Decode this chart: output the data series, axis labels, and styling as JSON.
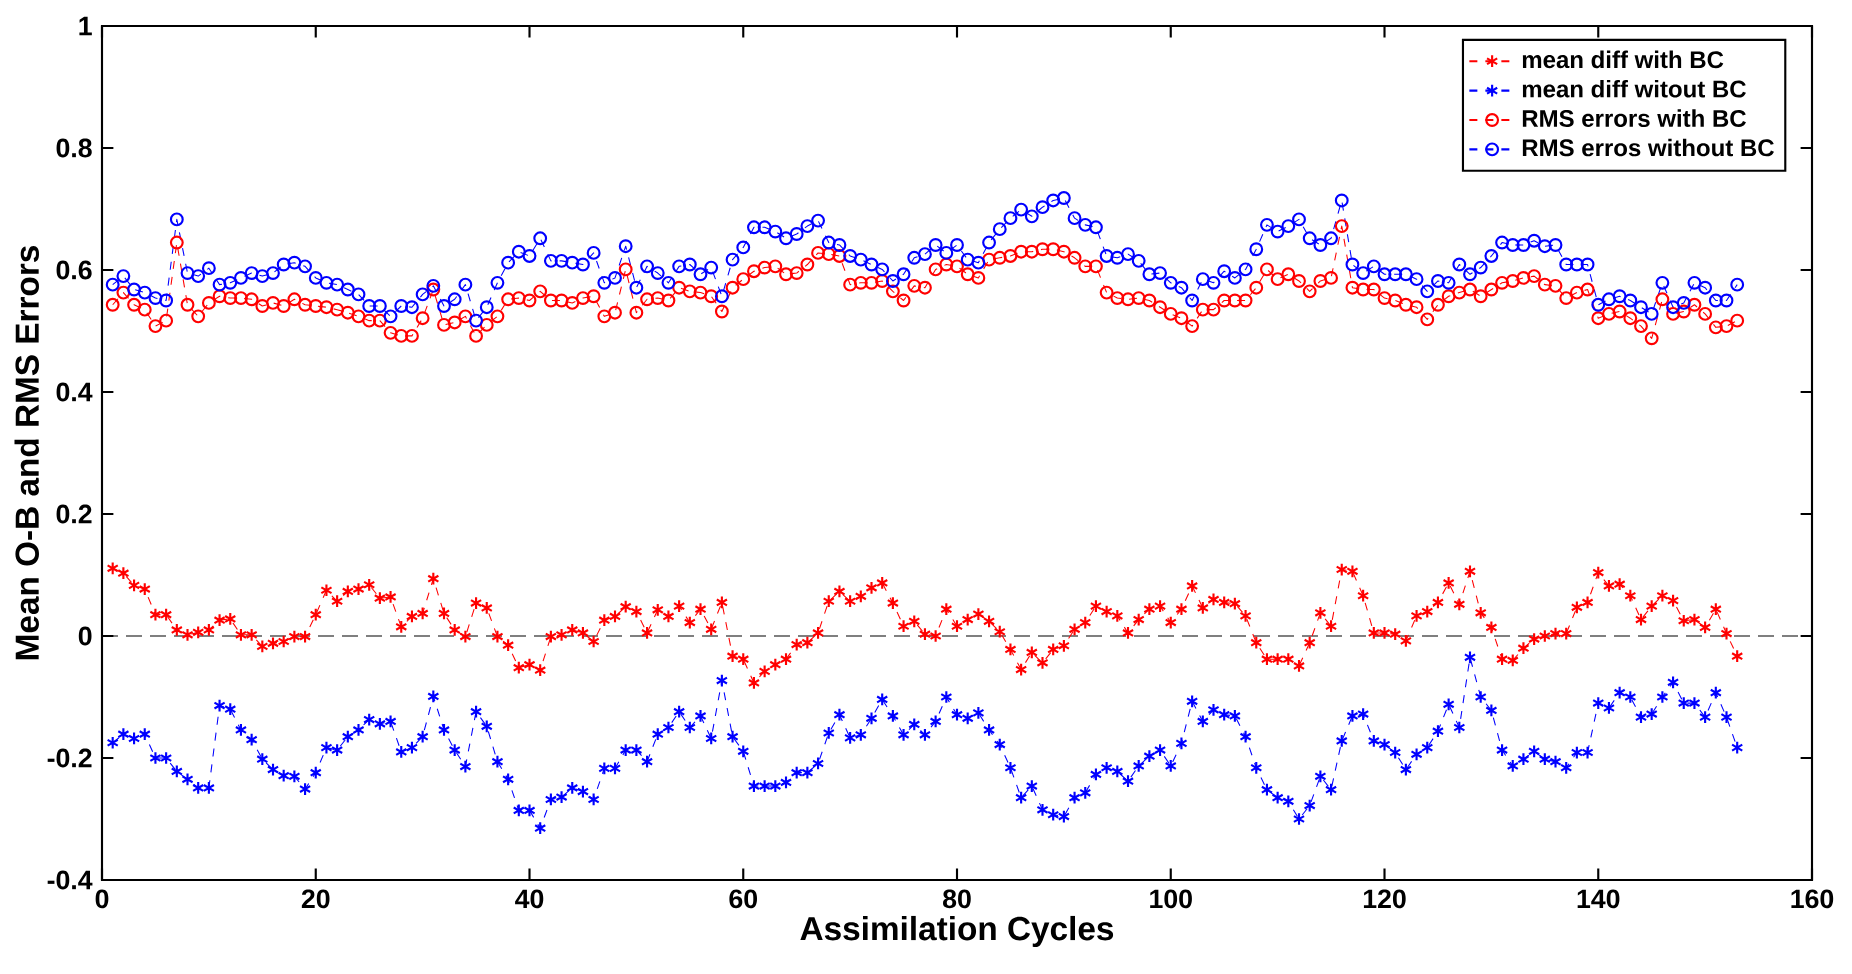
{
  "chart_data": {
    "type": "line",
    "xlabel": "Assimilation Cycles",
    "ylabel": "Mean O-B and RMS Errors",
    "xlim": [
      0,
      160
    ],
    "xticks": [
      0,
      20,
      40,
      60,
      80,
      100,
      120,
      140,
      160
    ],
    "ylim": [
      -0.4,
      1
    ],
    "yticks": [
      -0.4,
      -0.2,
      0,
      0.2,
      0.4,
      0.6,
      0.8,
      1
    ],
    "legend": "top right",
    "line_style": "dashed",
    "ref_lines": [
      {
        "axis": "y",
        "value": 0,
        "color": "#000000",
        "line_style": "dashed"
      }
    ],
    "x": [
      1,
      2,
      3,
      4,
      5,
      6,
      7,
      8,
      9,
      10,
      11,
      12,
      13,
      14,
      15,
      16,
      17,
      18,
      19,
      20,
      21,
      22,
      23,
      24,
      25,
      26,
      27,
      28,
      29,
      30,
      31,
      32,
      33,
      34,
      35,
      36,
      37,
      38,
      39,
      40,
      41,
      42,
      43,
      44,
      45,
      46,
      47,
      48,
      49,
      50,
      51,
      52,
      53,
      54,
      55,
      56,
      57,
      58,
      59,
      60,
      61,
      62,
      63,
      64,
      65,
      66,
      67,
      68,
      69,
      70,
      71,
      72,
      73,
      74,
      75,
      76,
      77,
      78,
      79,
      80,
      81,
      82,
      83,
      84,
      85,
      86,
      87,
      88,
      89,
      90,
      91,
      92,
      93,
      94,
      95,
      96,
      97,
      98,
      99,
      100,
      101,
      102,
      103,
      104,
      105,
      106,
      107,
      108,
      109,
      110,
      111,
      112,
      113,
      114,
      115,
      116,
      117,
      118,
      119,
      120,
      121,
      122,
      123,
      124,
      125,
      126,
      127,
      128,
      129,
      130,
      131,
      132,
      133,
      134,
      135,
      136,
      137,
      138,
      139,
      140,
      141,
      142,
      143,
      144,
      145,
      146,
      147,
      148,
      149,
      150,
      151,
      152,
      153
    ],
    "series": [
      {
        "name": "mean diff with BC",
        "color": "#ff0000",
        "marker": "cross",
        "values": [
          0.111,
          0.103,
          0.083,
          0.077,
          0.035,
          0.035,
          0.01,
          0.002,
          0.006,
          0.01,
          0.026,
          0.028,
          0.002,
          0.002,
          -0.017,
          -0.012,
          -0.009,
          -0.001,
          -0.001,
          0.035,
          0.075,
          0.057,
          0.073,
          0.077,
          0.084,
          0.062,
          0.064,
          0.015,
          0.032,
          0.037,
          0.094,
          0.037,
          0.01,
          -0.001,
          0.054,
          0.046,
          -0.001,
          -0.015,
          -0.052,
          -0.047,
          -0.056,
          -0.001,
          0.002,
          0.01,
          0.005,
          -0.009,
          0.026,
          0.032,
          0.048,
          0.04,
          0.005,
          0.043,
          0.032,
          0.049,
          0.022,
          0.044,
          0.011,
          0.055,
          -0.033,
          -0.038,
          -0.077,
          -0.058,
          -0.047,
          -0.038,
          -0.014,
          -0.011,
          0.005,
          0.057,
          0.073,
          0.057,
          0.065,
          0.079,
          0.087,
          0.054,
          0.016,
          0.024,
          0.003,
          0,
          0.044,
          0.016,
          0.027,
          0.036,
          0.024,
          0.007,
          -0.022,
          -0.055,
          -0.027,
          -0.044,
          -0.022,
          -0.016,
          0.011,
          0.022,
          0.049,
          0.04,
          0.033,
          0.005,
          0.027,
          0.044,
          0.049,
          0.022,
          0.044,
          0.082,
          0.046,
          0.06,
          0.055,
          0.053,
          0.033,
          -0.011,
          -0.038,
          -0.038,
          -0.038,
          -0.049,
          -0.011,
          0.038,
          0.016,
          0.109,
          0.106,
          0.066,
          0.005,
          0.005,
          0.003,
          -0.008,
          0.033,
          0.04,
          0.055,
          0.087,
          0.052,
          0.106,
          0.038,
          0.014,
          -0.038,
          -0.04,
          -0.02,
          -0.005,
          0,
          0.004,
          0.004,
          0.047,
          0.055,
          0.104,
          0.082,
          0.085,
          0.066,
          0.027,
          0.049,
          0.066,
          0.058,
          0.025,
          0.027,
          0.014,
          0.044,
          0.004,
          -0.033
        ]
      },
      {
        "name": "mean diff witout BC",
        "color": "#0000ff",
        "marker": "cross",
        "values": [
          -0.175,
          -0.161,
          -0.168,
          -0.161,
          -0.2,
          -0.2,
          -0.222,
          -0.235,
          -0.249,
          -0.249,
          -0.114,
          -0.12,
          -0.154,
          -0.17,
          -0.202,
          -0.219,
          -0.229,
          -0.23,
          -0.251,
          -0.224,
          -0.183,
          -0.187,
          -0.165,
          -0.154,
          -0.137,
          -0.144,
          -0.14,
          -0.19,
          -0.183,
          -0.165,
          -0.099,
          -0.154,
          -0.187,
          -0.214,
          -0.124,
          -0.148,
          -0.206,
          -0.235,
          -0.286,
          -0.286,
          -0.315,
          -0.268,
          -0.264,
          -0.249,
          -0.255,
          -0.268,
          -0.217,
          -0.217,
          -0.187,
          -0.187,
          -0.206,
          -0.161,
          -0.15,
          -0.124,
          -0.15,
          -0.131,
          -0.168,
          -0.073,
          -0.165,
          -0.189,
          -0.246,
          -0.246,
          -0.246,
          -0.24,
          -0.224,
          -0.224,
          -0.209,
          -0.159,
          -0.129,
          -0.167,
          -0.162,
          -0.135,
          -0.104,
          -0.131,
          -0.162,
          -0.145,
          -0.162,
          -0.14,
          -0.1,
          -0.129,
          -0.135,
          -0.126,
          -0.154,
          -0.178,
          -0.216,
          -0.265,
          -0.246,
          -0.285,
          -0.293,
          -0.296,
          -0.265,
          -0.257,
          -0.227,
          -0.216,
          -0.222,
          -0.238,
          -0.213,
          -0.197,
          -0.187,
          -0.213,
          -0.176,
          -0.107,
          -0.14,
          -0.121,
          -0.129,
          -0.131,
          -0.165,
          -0.216,
          -0.252,
          -0.265,
          -0.271,
          -0.3,
          -0.278,
          -0.23,
          -0.252,
          -0.172,
          -0.131,
          -0.128,
          -0.172,
          -0.178,
          -0.191,
          -0.219,
          -0.194,
          -0.183,
          -0.156,
          -0.112,
          -0.15,
          -0.035,
          -0.1,
          -0.122,
          -0.187,
          -0.213,
          -0.202,
          -0.189,
          -0.202,
          -0.206,
          -0.216,
          -0.191,
          -0.191,
          -0.11,
          -0.118,
          -0.093,
          -0.1,
          -0.133,
          -0.128,
          -0.1,
          -0.076,
          -0.11,
          -0.11,
          -0.133,
          -0.093,
          -0.133,
          -0.183
        ]
      },
      {
        "name": "RMS errors with BC",
        "color": "#ff0000",
        "marker": "circle",
        "values": [
          0.543,
          0.563,
          0.543,
          0.535,
          0.508,
          0.517,
          0.645,
          0.543,
          0.524,
          0.546,
          0.557,
          0.554,
          0.554,
          0.552,
          0.541,
          0.546,
          0.541,
          0.552,
          0.543,
          0.541,
          0.539,
          0.535,
          0.53,
          0.524,
          0.517,
          0.517,
          0.497,
          0.492,
          0.492,
          0.521,
          0.568,
          0.51,
          0.514,
          0.524,
          0.492,
          0.51,
          0.524,
          0.552,
          0.554,
          0.55,
          0.565,
          0.55,
          0.55,
          0.546,
          0.554,
          0.557,
          0.524,
          0.53,
          0.601,
          0.53,
          0.552,
          0.554,
          0.55,
          0.571,
          0.565,
          0.563,
          0.557,
          0.532,
          0.571,
          0.585,
          0.598,
          0.604,
          0.606,
          0.593,
          0.595,
          0.609,
          0.628,
          0.626,
          0.623,
          0.576,
          0.579,
          0.579,
          0.582,
          0.565,
          0.55,
          0.574,
          0.571,
          0.601,
          0.609,
          0.606,
          0.593,
          0.587,
          0.617,
          0.62,
          0.623,
          0.63,
          0.63,
          0.634,
          0.634,
          0.63,
          0.62,
          0.606,
          0.606,
          0.563,
          0.554,
          0.552,
          0.554,
          0.55,
          0.539,
          0.528,
          0.521,
          0.508,
          0.535,
          0.535,
          0.55,
          0.55,
          0.55,
          0.571,
          0.601,
          0.585,
          0.593,
          0.582,
          0.565,
          0.582,
          0.587,
          0.672,
          0.571,
          0.568,
          0.568,
          0.554,
          0.55,
          0.543,
          0.539,
          0.519,
          0.543,
          0.557,
          0.563,
          0.568,
          0.557,
          0.568,
          0.579,
          0.582,
          0.587,
          0.59,
          0.576,
          0.574,
          0.554,
          0.563,
          0.568,
          0.521,
          0.528,
          0.532,
          0.521,
          0.508,
          0.488,
          0.552,
          0.528,
          0.532,
          0.543,
          0.528,
          0.506,
          0.508,
          0.517
        ]
      },
      {
        "name": "RMS erros without BC",
        "color": "#0000ff",
        "marker": "circle",
        "values": [
          0.576,
          0.59,
          0.568,
          0.563,
          0.554,
          0.55,
          0.683,
          0.595,
          0.59,
          0.603,
          0.576,
          0.579,
          0.587,
          0.595,
          0.59,
          0.595,
          0.609,
          0.612,
          0.606,
          0.587,
          0.579,
          0.576,
          0.568,
          0.56,
          0.541,
          0.541,
          0.524,
          0.541,
          0.539,
          0.56,
          0.574,
          0.541,
          0.552,
          0.576,
          0.517,
          0.539,
          0.579,
          0.612,
          0.63,
          0.623,
          0.652,
          0.615,
          0.615,
          0.612,
          0.609,
          0.628,
          0.579,
          0.587,
          0.639,
          0.571,
          0.606,
          0.595,
          0.579,
          0.606,
          0.609,
          0.593,
          0.604,
          0.557,
          0.617,
          0.637,
          0.67,
          0.67,
          0.663,
          0.652,
          0.659,
          0.672,
          0.681,
          0.645,
          0.641,
          0.623,
          0.617,
          0.609,
          0.601,
          0.582,
          0.593,
          0.62,
          0.626,
          0.641,
          0.628,
          0.641,
          0.617,
          0.612,
          0.645,
          0.667,
          0.685,
          0.699,
          0.688,
          0.703,
          0.714,
          0.718,
          0.685,
          0.674,
          0.67,
          0.623,
          0.62,
          0.626,
          0.615,
          0.593,
          0.595,
          0.579,
          0.571,
          0.55,
          0.585,
          0.579,
          0.598,
          0.587,
          0.601,
          0.634,
          0.674,
          0.663,
          0.672,
          0.683,
          0.652,
          0.641,
          0.652,
          0.714,
          0.609,
          0.595,
          0.606,
          0.593,
          0.593,
          0.593,
          0.585,
          0.565,
          0.582,
          0.579,
          0.609,
          0.593,
          0.604,
          0.623,
          0.645,
          0.641,
          0.641,
          0.648,
          0.639,
          0.641,
          0.609,
          0.609,
          0.609,
          0.543,
          0.552,
          0.557,
          0.55,
          0.539,
          0.528,
          0.579,
          0.539,
          0.546,
          0.579,
          0.571,
          0.55,
          0.55,
          0.576
        ]
      }
    ]
  }
}
